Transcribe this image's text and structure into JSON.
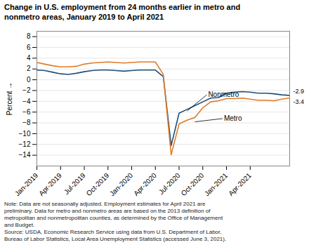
{
  "chart_data": {
    "type": "line",
    "title": "Change in U.S. employment from 24 months earlier in metro and\nnonmetro areas, January 2019 to April 2021",
    "note": "Note: Data are not seasonally adjusted. Employment estimates for April 2021 are\npreliminary. Data for metro and nonmetro areas are based on the 2013 definition of\nmetropolitan and nonmetropolitan counties, as determined by the Office of Management\nand Budget.\nSource: USDA, Economic Research Service using data from U.S. Department of Labor,\nBureau of Labor Statistics, Local Area Unemployment Statistics (accessed June 3, 2021).",
    "ylabel": "Percent",
    "ylim": [
      -16,
      9
    ],
    "yticks": [
      -14,
      -12,
      -10,
      -8,
      -6,
      -4,
      -2,
      0,
      2,
      4,
      6,
      8
    ],
    "grid": true,
    "categories": [
      "Jan-2019",
      null,
      null,
      "Apr-2019",
      null,
      null,
      "Jul-2019",
      null,
      null,
      "Oct-2019",
      null,
      null,
      "Jan-2020",
      null,
      null,
      "Apr-2020",
      null,
      null,
      "Jul-2020",
      null,
      null,
      "Oct-2020",
      null,
      null,
      "Jan-2021",
      null,
      null,
      "Apr-2021",
      null,
      null,
      null,
      null,
      null
    ],
    "series": [
      {
        "name": "Nonmetro",
        "color": "#1f4e79",
        "end_label": "-2.9",
        "values": [
          1.8,
          1.7,
          1.4,
          1.1,
          1.0,
          1.2,
          1.5,
          1.7,
          1.8,
          1.8,
          1.7,
          1.6,
          1.7,
          1.8,
          1.8,
          1.8,
          0.6,
          -12.2,
          -6.2,
          -5.5,
          -4.8,
          -4.1,
          -3.4,
          -3.3,
          -2.5,
          -2.3,
          -2.2,
          -2.3,
          -2.5,
          -2.5,
          -2.6,
          -2.8,
          -2.9
        ]
      },
      {
        "name": "Metro",
        "color": "#e07b27",
        "end_label": "-3.4",
        "values": [
          3.2,
          2.9,
          2.6,
          2.4,
          2.4,
          2.5,
          2.9,
          3.1,
          3.2,
          3.3,
          3.2,
          3.1,
          3.2,
          3.3,
          3.3,
          3.3,
          1.0,
          -13.9,
          -8.2,
          -7.5,
          -7.0,
          -5.2,
          -4.1,
          -3.9,
          -3.5,
          -3.5,
          -3.4,
          -3.6,
          -3.8,
          -3.8,
          -3.9,
          -3.6,
          -3.4
        ]
      }
    ],
    "annotations": [
      {
        "text": "Nonmetro",
        "x": 19,
        "y": -5.8,
        "text_x": 21.5,
        "text_y": -2.8
      },
      {
        "text": "Metro",
        "x": 20,
        "y": -7.8,
        "text_x": 23.5,
        "text_y": -7.2
      }
    ]
  }
}
